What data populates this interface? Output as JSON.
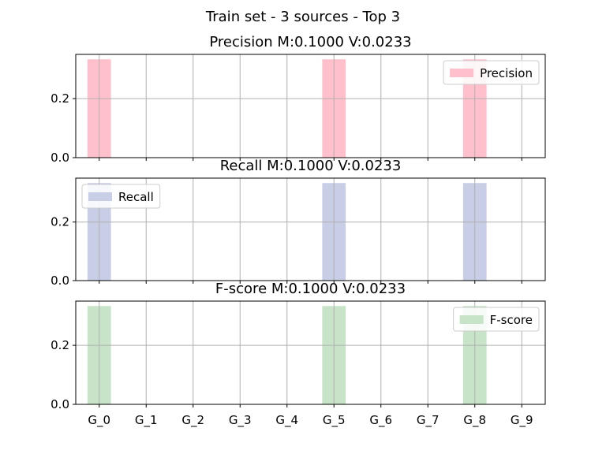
{
  "suptitle": "Train set - 3 sources - Top 3",
  "chart_data": [
    {
      "type": "bar",
      "title": "Precision M:0.1000 V:0.0233",
      "categories": [
        "G_0",
        "G_1",
        "G_2",
        "G_3",
        "G_4",
        "G_5",
        "G_6",
        "G_7",
        "G_8",
        "G_9"
      ],
      "series": [
        {
          "name": "Precision",
          "values": [
            0.3333,
            0,
            0,
            0,
            0,
            0.3333,
            0,
            0,
            0.3333,
            0
          ],
          "color": "#ffc0cb"
        }
      ],
      "ylim": [
        0,
        0.35
      ],
      "yticks": [
        0.0,
        0.2
      ],
      "ytick_labels": [
        "0.0",
        "0.2"
      ],
      "show_xtick_labels": false,
      "grid": true,
      "legend_loc": "upper right"
    },
    {
      "type": "bar",
      "title": "Recall M:0.1000 V:0.0233",
      "categories": [
        "G_0",
        "G_1",
        "G_2",
        "G_3",
        "G_4",
        "G_5",
        "G_6",
        "G_7",
        "G_8",
        "G_9"
      ],
      "series": [
        {
          "name": "Recall",
          "values": [
            0.3333,
            0,
            0,
            0,
            0,
            0.3333,
            0,
            0,
            0.3333,
            0
          ],
          "color": "#c8cee6"
        }
      ],
      "ylim": [
        0,
        0.35
      ],
      "yticks": [
        0.0,
        0.2
      ],
      "ytick_labels": [
        "0.0",
        "0.2"
      ],
      "show_xtick_labels": false,
      "grid": true,
      "legend_loc": "upper left"
    },
    {
      "type": "bar",
      "title": "F-score M:0.1000 V:0.0233",
      "categories": [
        "G_0",
        "G_1",
        "G_2",
        "G_3",
        "G_4",
        "G_5",
        "G_6",
        "G_7",
        "G_8",
        "G_9"
      ],
      "series": [
        {
          "name": "F-score",
          "values": [
            0.3333,
            0,
            0,
            0,
            0,
            0.3333,
            0,
            0,
            0.3333,
            0
          ],
          "color": "#c8e4c8"
        }
      ],
      "ylim": [
        0,
        0.35
      ],
      "yticks": [
        0.0,
        0.2
      ],
      "ytick_labels": [
        "0.0",
        "0.2"
      ],
      "show_xtick_labels": true,
      "grid": true,
      "legend_loc": "upper right"
    }
  ]
}
